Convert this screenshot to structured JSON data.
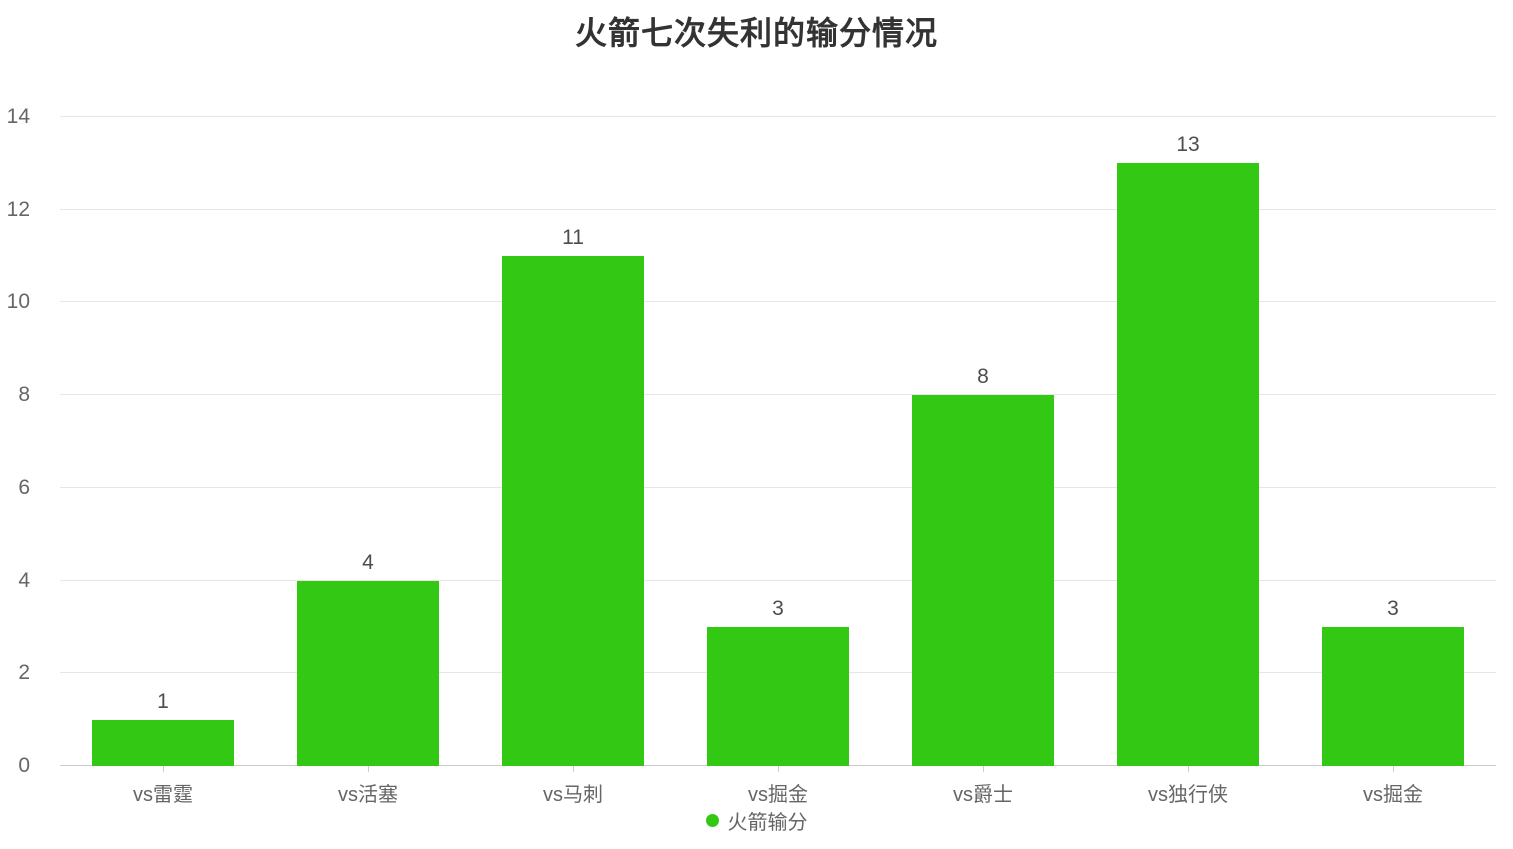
{
  "chart_data": {
    "type": "bar",
    "title": "火箭七次失利的输分情况",
    "categories": [
      "vs雷霆",
      "vs活塞",
      "vs马刺",
      "vs掘金",
      "vs爵士",
      "vs独行侠",
      "vs掘金"
    ],
    "series": [
      {
        "name": "火箭输分",
        "values": [
          1,
          4,
          11,
          3,
          8,
          13,
          3
        ]
      }
    ],
    "xlabel": "",
    "ylabel": "",
    "ylim": [
      0,
      14
    ],
    "y_ticks": [
      0,
      2,
      4,
      6,
      8,
      10,
      12,
      14
    ],
    "grid": true,
    "legend_position": "bottom",
    "value_labels_shown": true,
    "colors": {
      "bar": "#32c814",
      "grid_line": "#e6e6e6",
      "axis_line": "#cccccc",
      "tick_text": "#666666",
      "value_text": "#4d4d4d",
      "title_text": "#333333"
    }
  }
}
